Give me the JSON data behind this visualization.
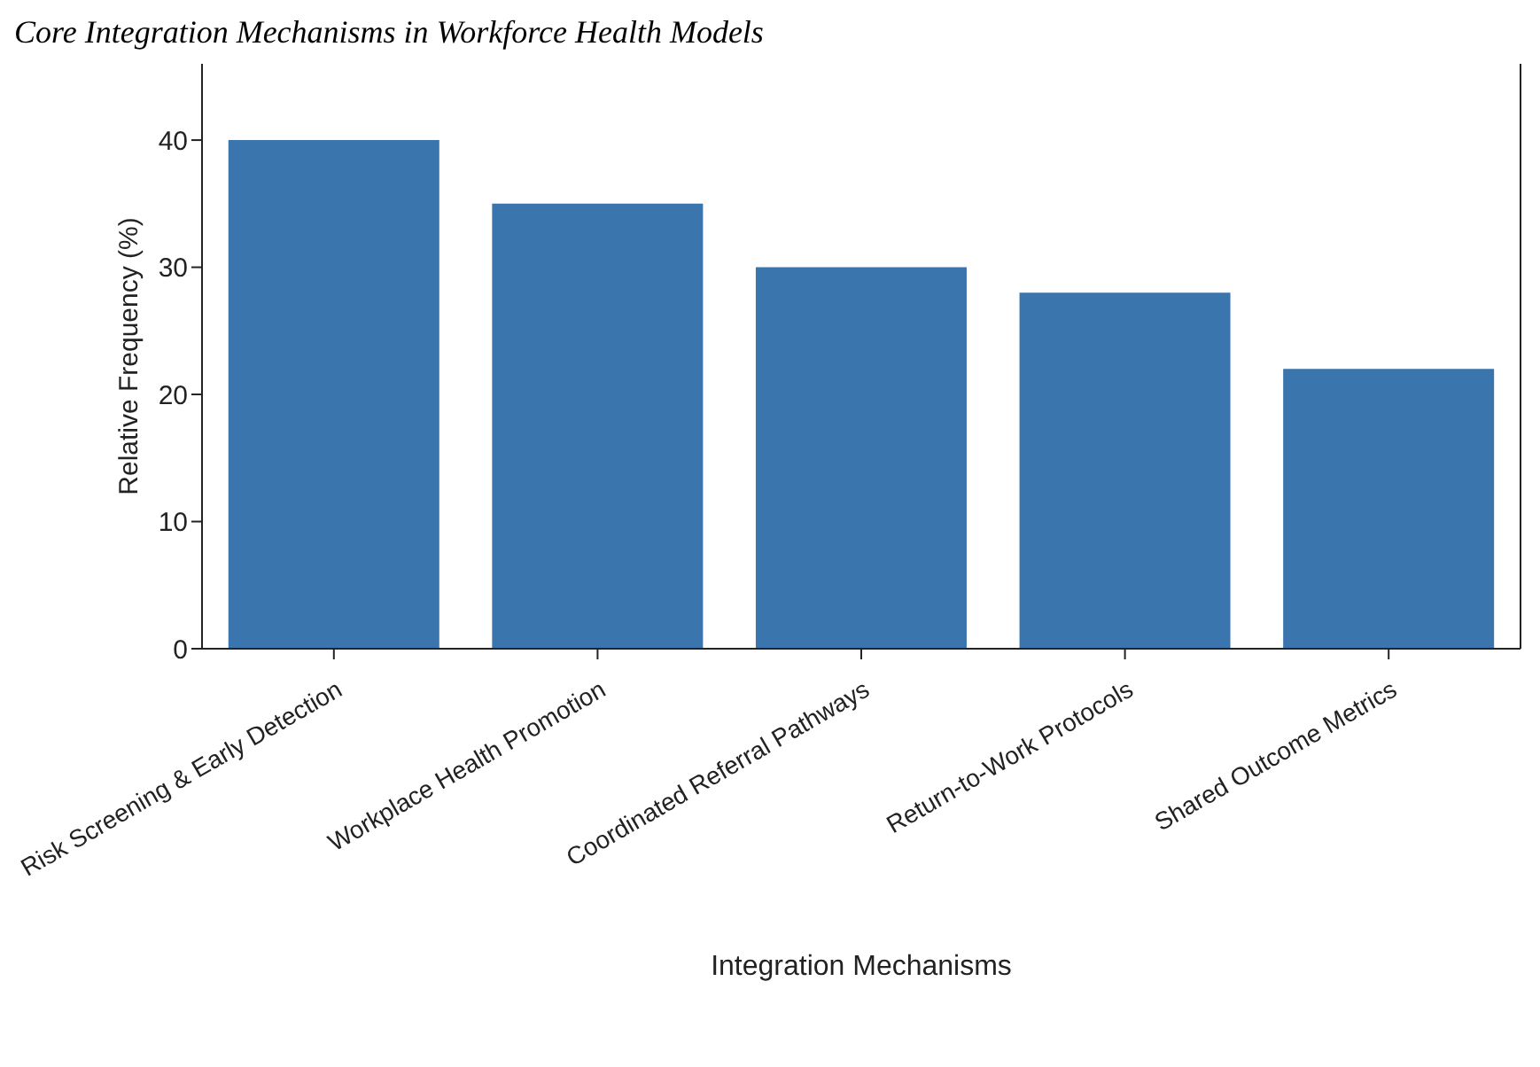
{
  "chart_data": {
    "type": "bar",
    "title": "Core Integration Mechanisms in Workforce Health Models",
    "xlabel": "Integration Mechanisms",
    "ylabel": "Relative Frequency (%)",
    "categories": [
      "Risk Screening & Early Detection",
      "Workplace Health Promotion",
      "Coordinated Referral Pathways",
      "Return-to-Work Protocols",
      "Shared Outcome Metrics"
    ],
    "values": [
      40,
      35,
      30,
      28,
      22
    ],
    "color": "#3a75ae",
    "ylim": [
      0,
      46
    ],
    "yticks": [
      0,
      10,
      20,
      30,
      40
    ],
    "grid": false
  }
}
